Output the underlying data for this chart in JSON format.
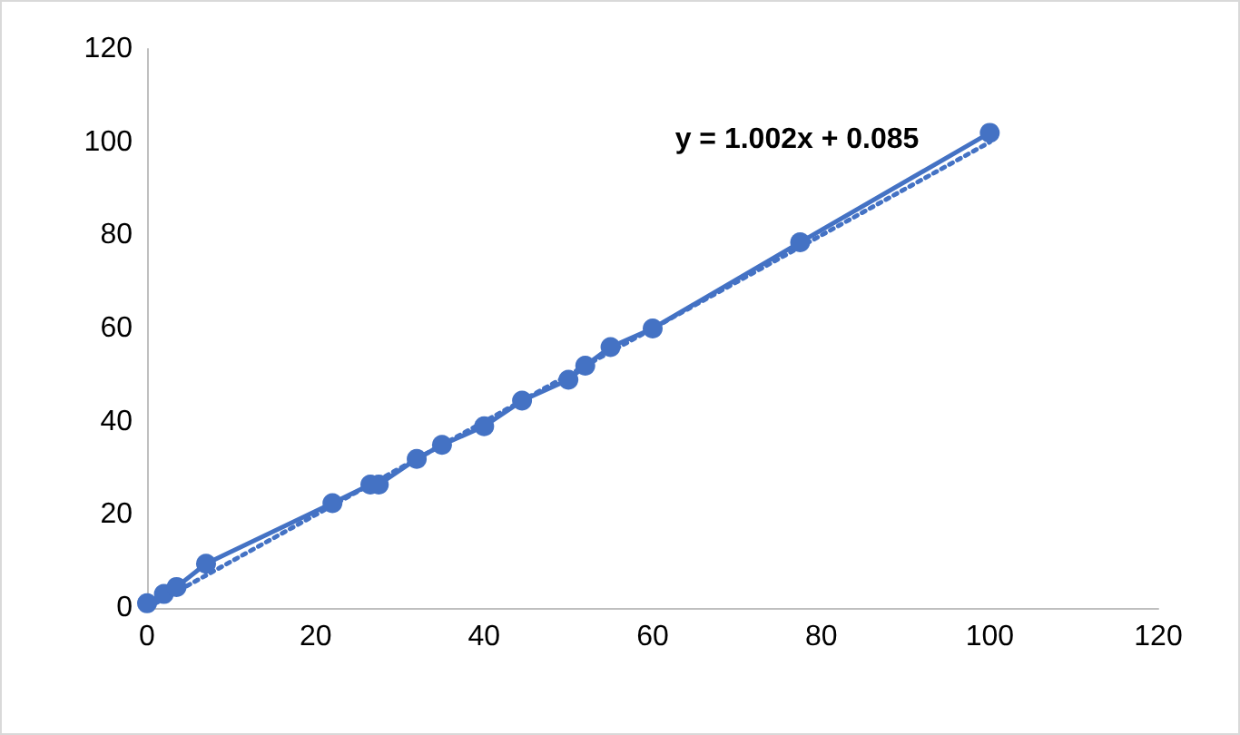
{
  "chart_data": {
    "type": "line",
    "x": [
      0,
      2,
      3.5,
      7,
      22,
      26.5,
      27.5,
      32,
      35,
      40,
      44.5,
      50,
      52,
      55,
      60,
      77.5,
      100
    ],
    "series": [
      {
        "color": "#4472c4",
        "values": [
          1,
          3,
          4.5,
          9.5,
          22.5,
          26.5,
          26.5,
          32,
          35,
          39,
          44.5,
          49,
          52,
          56,
          60,
          78.5,
          102
        ],
        "marker": "circle",
        "line_style": "solid"
      },
      {
        "type": "line",
        "color": "#4472c4",
        "x": [
          0,
          100
        ],
        "values": [
          0,
          100
        ],
        "marker": "none",
        "line_style": "dotted"
      }
    ],
    "annotations": [
      "y = 1.002x + 0.085"
    ],
    "xlim": [
      0,
      120
    ],
    "xticks": [
      0,
      20,
      40,
      60,
      80,
      100,
      120
    ],
    "ylim": [
      0,
      120
    ],
    "yticks": [
      0,
      20,
      40,
      60,
      80,
      100,
      120
    ],
    "grid": false
  }
}
